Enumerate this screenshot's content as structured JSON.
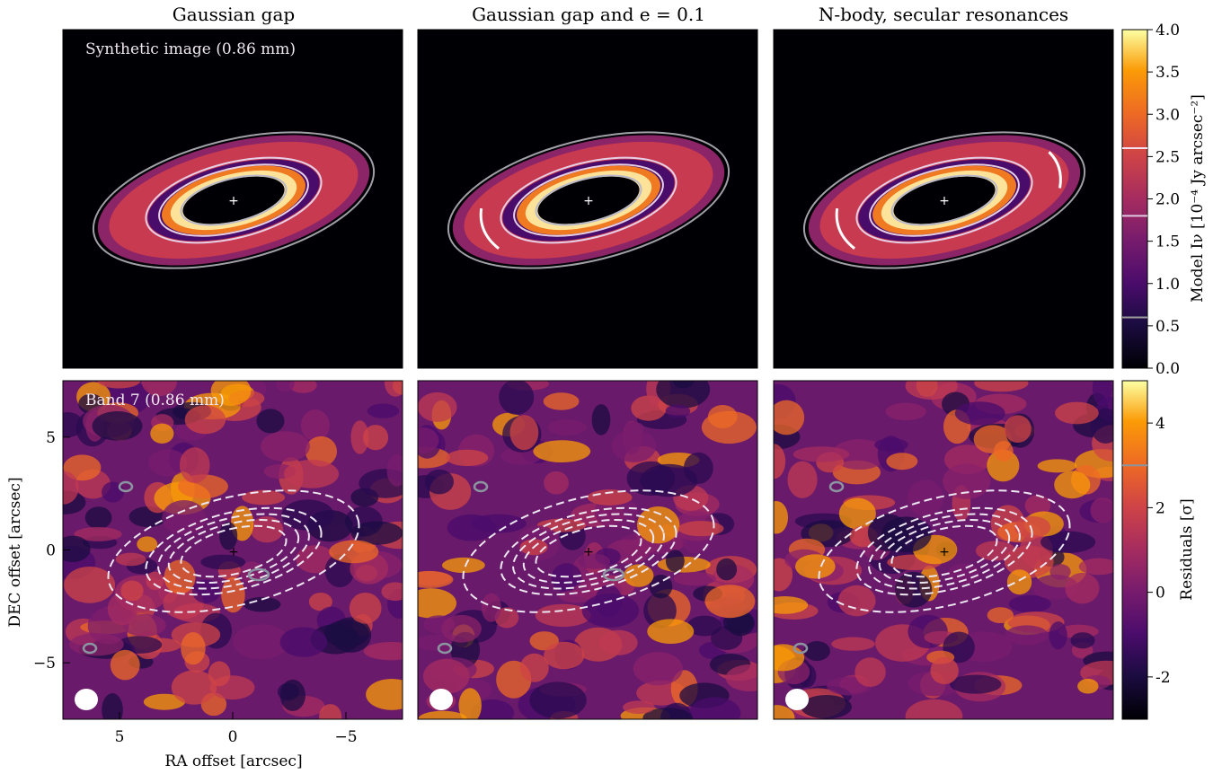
{
  "chart_data": [
    {
      "type": "heatmap",
      "row": "model",
      "panel_titles": [
        "Gaussian gap",
        "Gaussian gap and e = 0.1",
        "N-body, secular resonances"
      ],
      "annotation": "Synthetic image (0.86 mm)",
      "colormap": "inferno",
      "colorbar": {
        "label": "Model Iν [10⁻⁴ Jy arcsec⁻²]",
        "range": [
          0,
          4.0
        ],
        "ticks": [
          "0.0",
          "0.5",
          "1.0",
          "1.5",
          "2.0",
          "2.5",
          "3.0",
          "3.5",
          "4.0"
        ],
        "contour_levels": [
          0.6,
          1.8,
          2.6
        ],
        "contour_colors": [
          "#9a9a9a",
          "#e0c8e0",
          "#f4e0ee"
        ]
      }
    },
    {
      "type": "heatmap",
      "row": "residuals",
      "annotation": "Band 7 (0.86 mm)",
      "colormap": "inferno",
      "xlabel": "RA offset [arcsec]",
      "ylabel": "DEC offset [arcsec]",
      "xlim": [
        7.5,
        -7.5
      ],
      "ylim": [
        -7.5,
        7.5
      ],
      "x_ticks": [
        "5",
        "0",
        "−5"
      ],
      "y_ticks": [
        "5",
        "0",
        "−5"
      ],
      "colorbar": {
        "label": "Residuals [σ]",
        "range": [
          -3,
          5
        ],
        "ticks": [
          "-2",
          "0",
          "2",
          "4"
        ],
        "contour_level": 3
      }
    }
  ],
  "colors": {
    "contour_gray": "#8a95a0",
    "dashed_contour": "#ece6f0",
    "background_dark": "#000004"
  }
}
